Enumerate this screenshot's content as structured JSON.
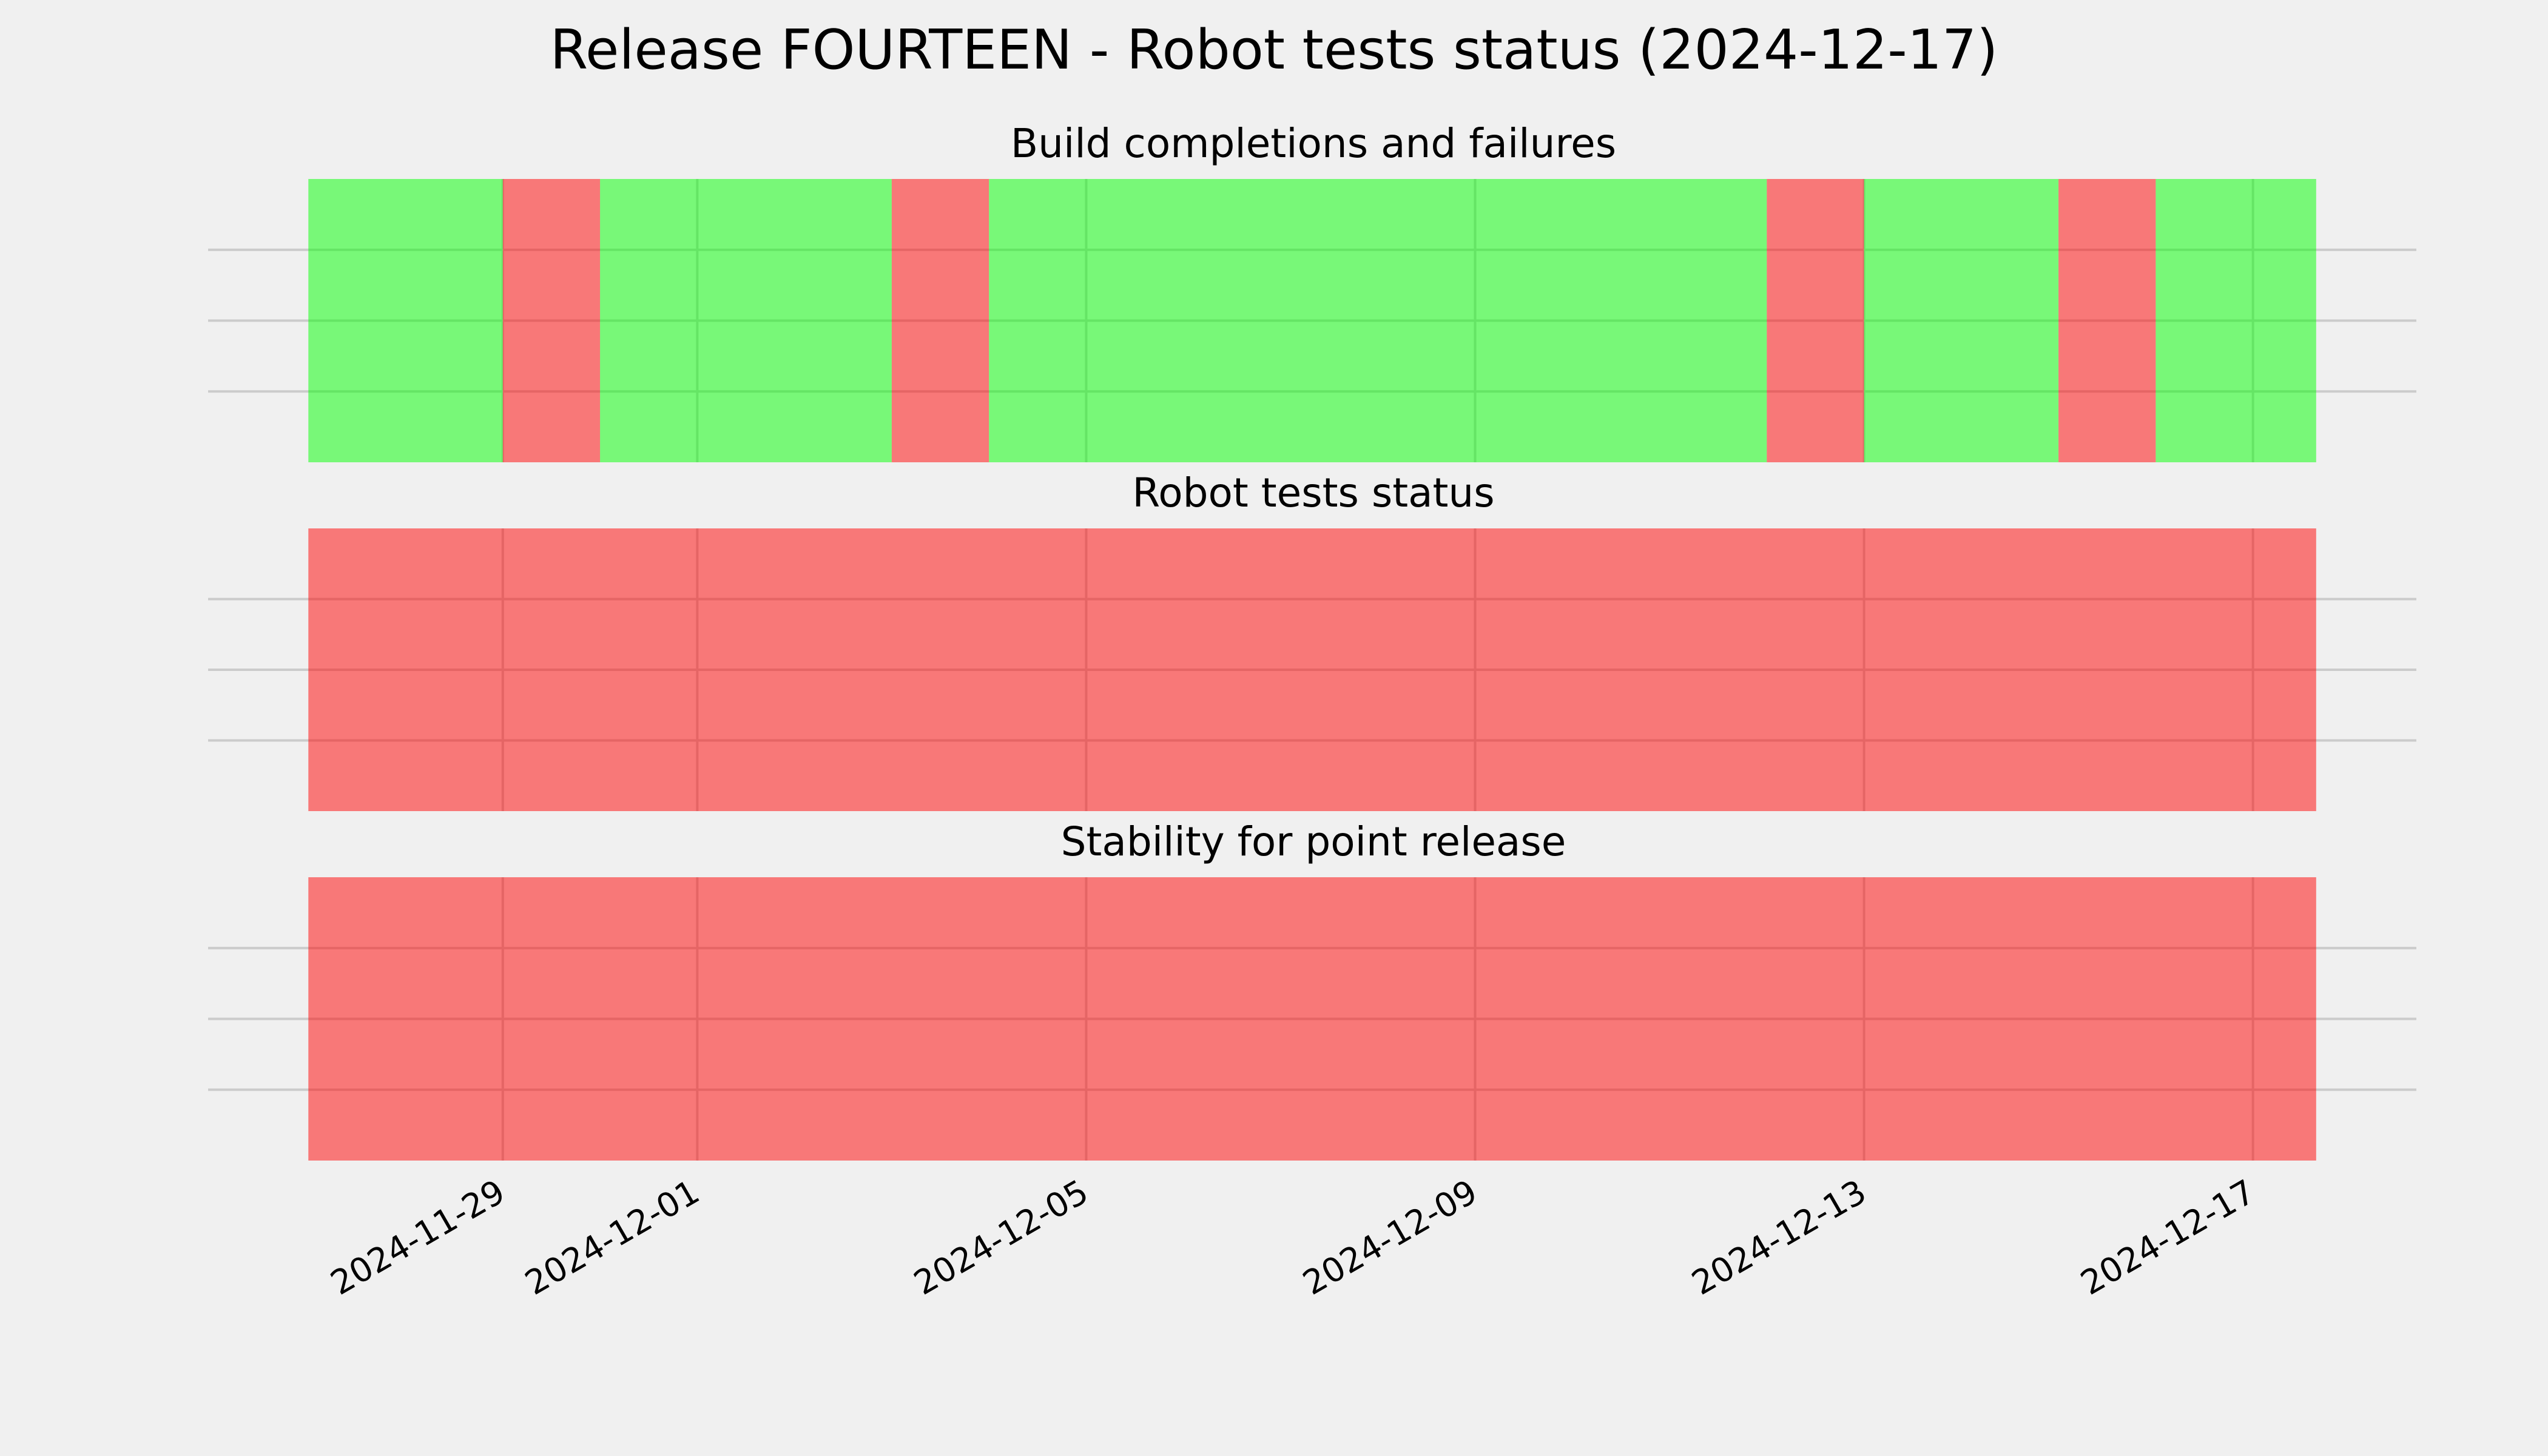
{
  "title": "Release FOURTEEN - Robot tests status (2024-12-17)",
  "x_axis": {
    "xlim": [
      "2024-11-25T23:15",
      "2024-12-18T16:20"
    ],
    "xticks": [
      "2024-11-29",
      "2024-12-01",
      "2024-12-05",
      "2024-12-09",
      "2024-12-13",
      "2024-12-17"
    ]
  },
  "chart_data": [
    {
      "type": "timeline",
      "title": "Build completions and failures",
      "ylim": [
        0,
        1
      ],
      "yticks": [
        0.25,
        0.5,
        0.75
      ],
      "grid": true,
      "alpha": 0.5,
      "spans": [
        {
          "start": "2024-11-27",
          "end": "2024-11-29",
          "color": "#00ff00"
        },
        {
          "start": "2024-11-29",
          "end": "2024-11-30",
          "color": "#ff0000"
        },
        {
          "start": "2024-11-30",
          "end": "2024-12-03",
          "color": "#00ff00"
        },
        {
          "start": "2024-12-03",
          "end": "2024-12-04",
          "color": "#ff0000"
        },
        {
          "start": "2024-12-04",
          "end": "2024-12-12",
          "color": "#00ff00"
        },
        {
          "start": "2024-12-12",
          "end": "2024-12-13",
          "color": "#ff0000"
        },
        {
          "start": "2024-12-13",
          "end": "2024-12-15",
          "color": "#00ff00"
        },
        {
          "start": "2024-12-15",
          "end": "2024-12-16",
          "color": "#ff0000"
        },
        {
          "start": "2024-12-16",
          "end": "2024-12-17T15:36",
          "color": "#00ff00"
        }
      ]
    },
    {
      "type": "timeline",
      "title": "Robot tests status",
      "ylim": [
        0,
        1
      ],
      "yticks": [
        0.25,
        0.5,
        0.75
      ],
      "grid": true,
      "alpha": 0.5,
      "spans": [
        {
          "start": "2024-11-27",
          "end": "2024-12-17T15:36",
          "color": "#ff0000"
        }
      ]
    },
    {
      "type": "timeline",
      "title": "Stability for point release",
      "ylim": [
        0,
        1
      ],
      "yticks": [
        0.25,
        0.5,
        0.75
      ],
      "grid": true,
      "alpha": 0.5,
      "spans": [
        {
          "start": "2024-11-27",
          "end": "2024-12-17T15:36",
          "color": "#ff0000"
        }
      ]
    }
  ]
}
